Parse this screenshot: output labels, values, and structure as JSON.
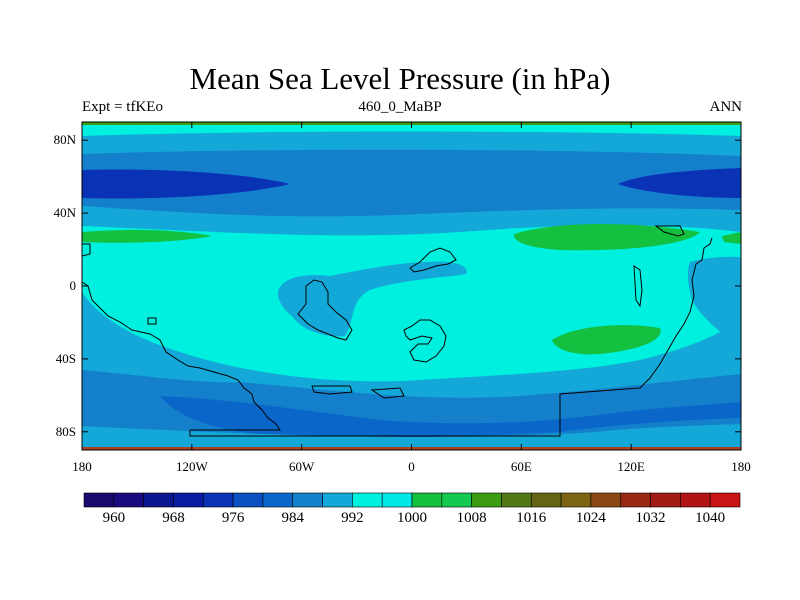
{
  "title": "Mean Sea Level Pressure (in hPa)",
  "subtitle_left": "Expt = tfKEo",
  "subtitle_center": "460_0_MaBP",
  "subtitle_right": "ANN",
  "map": {
    "lon_range": [
      -180,
      180
    ],
    "lat_range": [
      -90,
      90
    ],
    "lat_ticks": [
      {
        "value": 80,
        "label": "80N"
      },
      {
        "value": 40,
        "label": "40N"
      },
      {
        "value": 0,
        "label": "0"
      },
      {
        "value": -40,
        "label": "40S"
      },
      {
        "value": -80,
        "label": "80S"
      }
    ],
    "lon_ticks": [
      {
        "value": -180,
        "label": "180"
      },
      {
        "value": -120,
        "label": "120W"
      },
      {
        "value": -60,
        "label": "60W"
      },
      {
        "value": 0,
        "label": "0"
      },
      {
        "value": 60,
        "label": "60E"
      },
      {
        "value": 120,
        "label": "120E"
      },
      {
        "value": 180,
        "label": "180"
      }
    ],
    "background_level_color": "#00f0e0"
  },
  "colorbar": {
    "colors": [
      "#1a0a6e",
      "#1a0a80",
      "#0c1690",
      "#0a1ea4",
      "#0a32b4",
      "#0a50c0",
      "#0a66c8",
      "#1480cc",
      "#14a8d8",
      "#00f0e0",
      "#00e8e8",
      "#14c040",
      "#14c850",
      "#3c9c14",
      "#507814",
      "#646414",
      "#7c6414",
      "#8c4814",
      "#982814",
      "#a01c14",
      "#b01414",
      "#c81414"
    ],
    "labels": [
      "960",
      "968",
      "976",
      "984",
      "992",
      "1000",
      "1008",
      "1016",
      "1024",
      "1032",
      "1040"
    ]
  }
}
